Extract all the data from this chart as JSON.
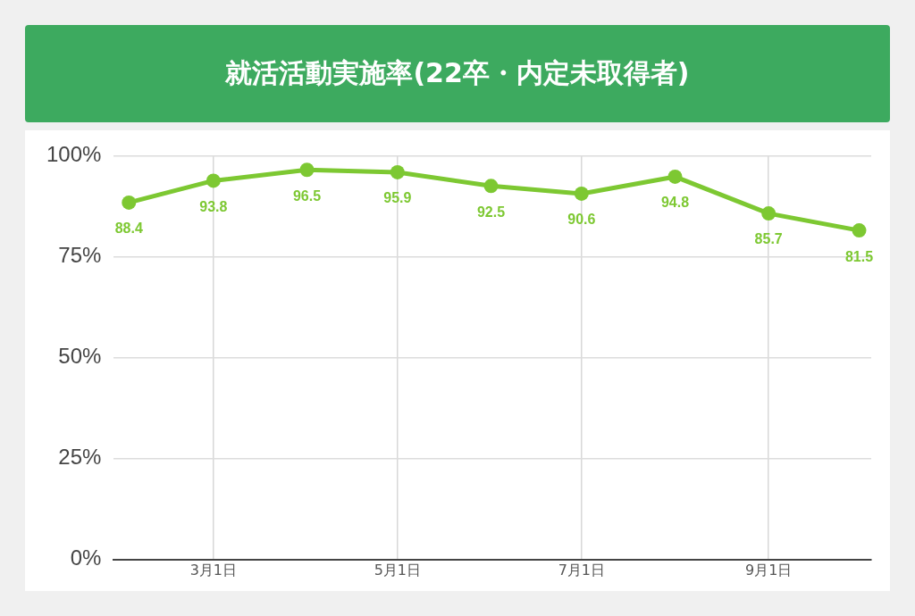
{
  "chart_data": {
    "type": "line",
    "title": "就活活動実施率(22卒・内定未取得者)",
    "x": [
      "--02-01",
      "--03-01",
      "--04-01",
      "--05-01",
      "--06-01",
      "--07-01",
      "--08-01",
      "--09-01",
      "--10-01"
    ],
    "series": [
      {
        "color": "#7dc832",
        "values": [
          88.4,
          93.8,
          96.5,
          95.9,
          92.5,
          90.6,
          94.8,
          85.7,
          81.5
        ]
      }
    ],
    "xlim": [
      "--01-27",
      "--10-05"
    ],
    "xticks": [
      {
        "value": "--03-01",
        "label": "3月1日"
      },
      {
        "value": "--05-01",
        "label": "5月1日"
      },
      {
        "value": "--07-01",
        "label": "7月1日"
      },
      {
        "value": "--09-01",
        "label": "9月1日"
      }
    ],
    "ylim": [
      0,
      100
    ],
    "yticks": [
      {
        "value": 0,
        "label": "0%"
      },
      {
        "value": 25,
        "label": "25%"
      },
      {
        "value": 50,
        "label": "50%"
      },
      {
        "value": 75,
        "label": "75%"
      },
      {
        "value": 100,
        "label": "100%"
      }
    ],
    "grid": true,
    "legend": false,
    "marker": "circle",
    "line_style": "solid",
    "data_labels": true
  }
}
